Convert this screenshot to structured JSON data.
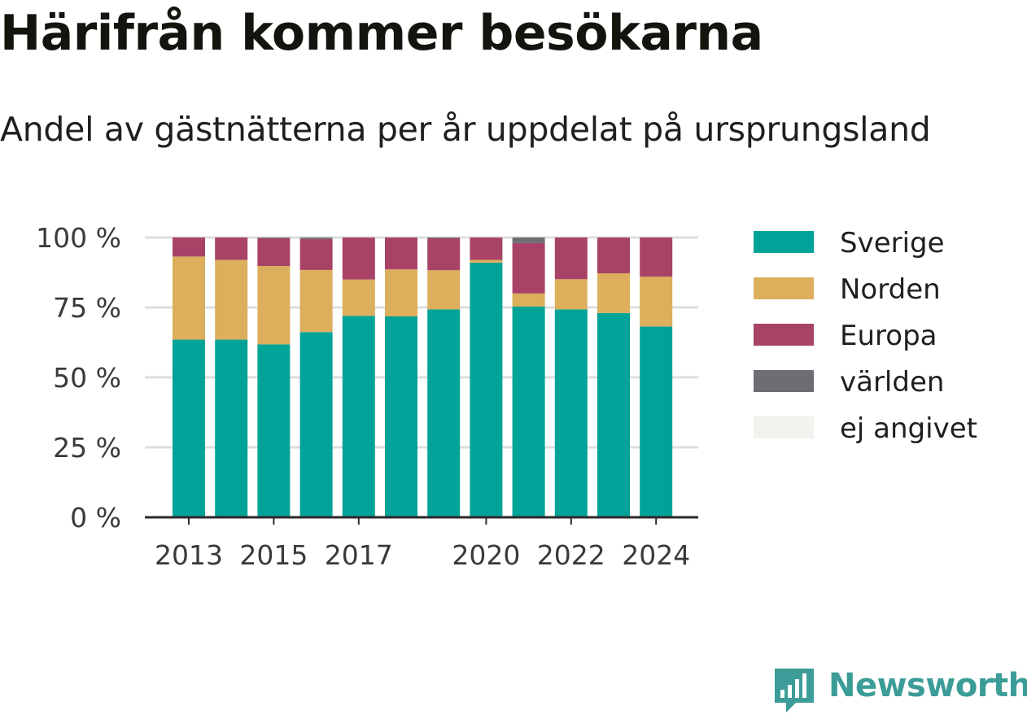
{
  "title": "Härifrån kommer besökarna",
  "subtitle": "Andel av gästnätterna per år uppdelat på ursprungsland",
  "logo_text": "Newsworthy",
  "chart_data": {
    "type": "bar",
    "stacked": true,
    "categories": [
      2013,
      2014,
      2015,
      2016,
      2017,
      2018,
      2019,
      2020,
      2021,
      2022,
      2023,
      2024
    ],
    "x_tick_labels": [
      "2013",
      "2015",
      "2017",
      "2020",
      "2022",
      "2024"
    ],
    "y_ticks": [
      0,
      25,
      50,
      75,
      100
    ],
    "y_tick_labels": [
      "0 %",
      "25 %",
      "50 %",
      "75 %",
      "100 %"
    ],
    "ylim": [
      0,
      100
    ],
    "grid": true,
    "legend_position": "right",
    "series": [
      {
        "name": "Sverige",
        "color": "#00a398",
        "values": [
          63.5,
          63.5,
          61.8,
          66.2,
          72.0,
          71.8,
          74.3,
          91.0,
          75.3,
          74.3,
          73.0,
          68.2
        ]
      },
      {
        "name": "Norden",
        "color": "#dbaf5c",
        "values": [
          29.7,
          28.5,
          28.0,
          22.2,
          13.0,
          16.8,
          14.0,
          1.0,
          4.7,
          10.8,
          14.2,
          17.8
        ]
      },
      {
        "name": "Europa",
        "color": "#a84367",
        "values": [
          6.8,
          8.0,
          10.0,
          11.1,
          15.0,
          11.4,
          11.4,
          8.0,
          18.0,
          14.9,
          12.8,
          14.0
        ]
      },
      {
        "name": "världen",
        "color": "#6d6d74",
        "values": [
          0,
          0,
          0.2,
          0.5,
          0,
          0,
          0.3,
          0,
          2.0,
          0,
          0,
          0
        ]
      },
      {
        "name": "ej angivet",
        "color": "#f3f2ef",
        "values": [
          0,
          0,
          0,
          0,
          0,
          0,
          0,
          0,
          0,
          0,
          0,
          0
        ]
      }
    ]
  }
}
